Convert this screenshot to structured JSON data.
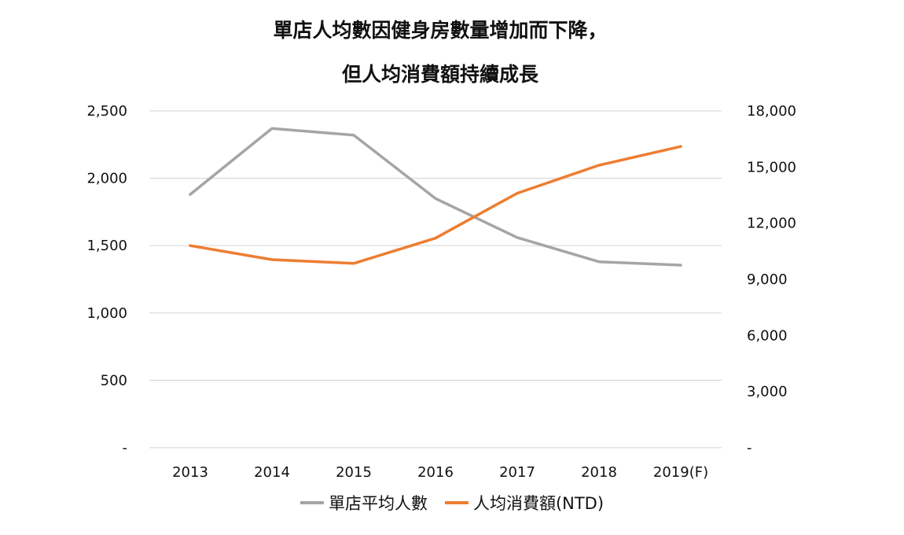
{
  "chart_data": {
    "type": "line",
    "title": "單店人均數因健身房數量增加而下降，",
    "subtitle": "但人均消費額持續成長",
    "categories": [
      "2013",
      "2014",
      "2015",
      "2016",
      "2017",
      "2018",
      "2019(F)"
    ],
    "y_left": {
      "ylim": [
        0,
        2500
      ],
      "ticks": [
        0,
        500,
        1000,
        1500,
        2000,
        2500
      ],
      "tick_labels": [
        "-",
        "500",
        "1,000",
        "1,500",
        "2,000",
        "2,500"
      ]
    },
    "y_right": {
      "ylim": [
        0,
        18000
      ],
      "ticks": [
        0,
        3000,
        6000,
        9000,
        12000,
        15000,
        18000
      ],
      "tick_labels": [
        "-",
        "3,000",
        "6,000",
        "9,000",
        "12,000",
        "15,000",
        "18,000"
      ]
    },
    "series": [
      {
        "name": "單店平均人數",
        "axis": "left",
        "color": "#a5a5a5",
        "values": [
          1880,
          2370,
          2320,
          1850,
          1560,
          1380,
          1355
        ]
      },
      {
        "name": "人均消費額(NTD)",
        "axis": "right",
        "color": "#ed7d31",
        "values": [
          10800,
          10050,
          9850,
          11200,
          13600,
          15100,
          16100
        ]
      }
    ],
    "grid": true,
    "legend_position": "bottom"
  }
}
